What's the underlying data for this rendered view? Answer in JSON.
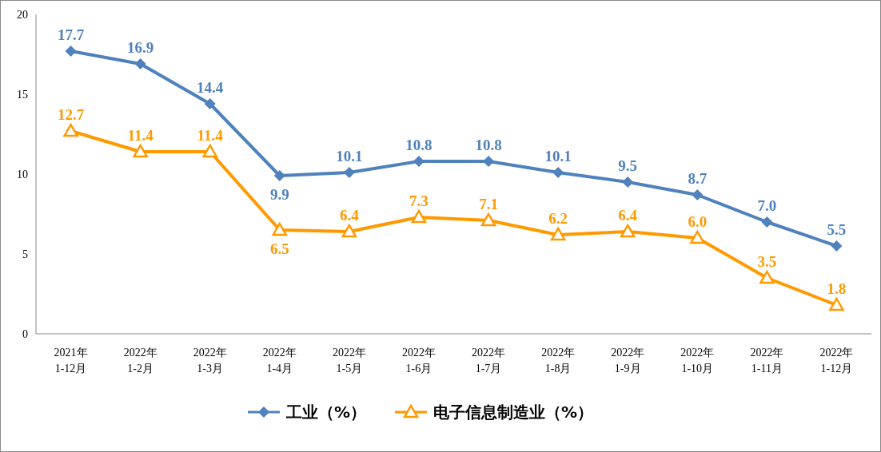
{
  "chart_data": {
    "type": "line",
    "categories": [
      "2021年\n1-12月",
      "2022年\n1-2月",
      "2022年\n1-3月",
      "2022年\n1-4月",
      "2022年\n1-5月",
      "2022年\n1-6月",
      "2022年\n1-7月",
      "2022年\n1-8月",
      "2022年\n1-9月",
      "2022年\n1-10月",
      "2022年\n1-11月",
      "2022年\n1-12月"
    ],
    "series": [
      {
        "name": "工业（%）",
        "color": "#4f81bd",
        "marker": "diamond",
        "values": [
          17.7,
          16.9,
          14.4,
          9.9,
          10.1,
          10.8,
          10.8,
          10.1,
          9.5,
          8.7,
          7.0,
          5.5
        ],
        "value_labels": [
          "17.7",
          "16.9",
          "14.4",
          "9.9",
          "10.1",
          "10.8",
          "10.8",
          "10.1",
          "9.5",
          "8.7",
          "7.0",
          "5.5"
        ]
      },
      {
        "name": "电子信息制造业（%）",
        "color": "#ff9900",
        "marker": "triangle",
        "values": [
          12.7,
          11.4,
          11.4,
          6.5,
          6.4,
          7.3,
          7.1,
          6.2,
          6.4,
          6.0,
          3.5,
          1.8
        ],
        "value_labels": [
          "12.7",
          "11.4",
          "11.4",
          "6.5",
          "6.4",
          "7.3",
          "7.1",
          "6.2",
          "6.4",
          "6.0",
          "3.5",
          "1.8"
        ]
      }
    ],
    "ylim": [
      0,
      20
    ],
    "yticks": [
      0,
      5,
      10,
      15,
      20
    ],
    "grid": false,
    "legend": "bottom",
    "line_style": "solid"
  }
}
